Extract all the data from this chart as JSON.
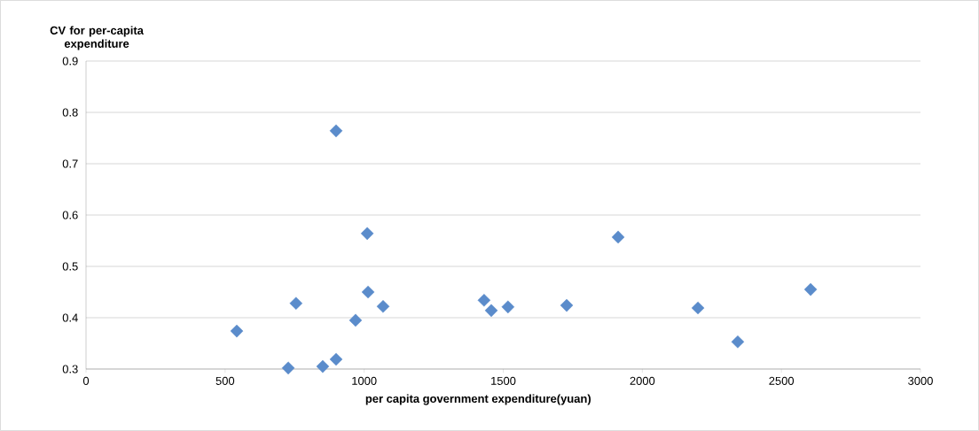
{
  "chart_data": {
    "type": "scatter",
    "xlabel": "per capita government expenditure(yuan)",
    "ylabel": "CV for per-capita expenditure",
    "x": [
      542,
      727,
      755,
      851,
      899,
      899,
      969,
      1011,
      1014,
      1068,
      1431,
      1457,
      1517,
      1728,
      1913,
      2200,
      2343,
      2605
    ],
    "values": [
      0.374,
      0.302,
      0.428,
      0.305,
      0.319,
      0.764,
      0.395,
      0.564,
      0.45,
      0.422,
      0.434,
      0.414,
      0.421,
      0.424,
      0.557,
      0.419,
      0.353,
      0.455
    ],
    "color": "#5b8ccb",
    "marker": "diamond",
    "grid": "y",
    "xlim": [
      0,
      3000
    ],
    "ylim": [
      0.3,
      0.9
    ],
    "xticks": [
      0,
      500,
      1000,
      1500,
      2000,
      2500,
      3000
    ],
    "yticks": [
      0.3,
      0.4,
      0.5,
      0.6,
      0.7,
      0.8,
      0.9
    ]
  }
}
